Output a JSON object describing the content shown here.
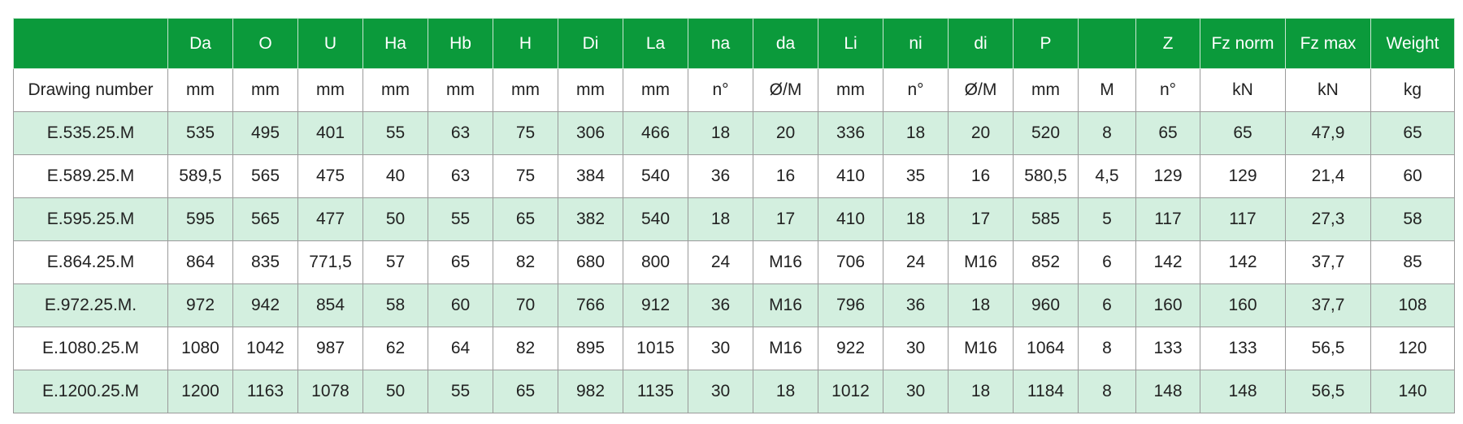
{
  "table": {
    "header": [
      null,
      "Da",
      "O",
      "U",
      "Ha",
      "Hb",
      "H",
      "Di",
      "La",
      "na",
      "da",
      "Li",
      "ni",
      "di",
      "P",
      null,
      "Z",
      "Fz norm",
      "Fz max",
      "Weight"
    ],
    "units": [
      "Drawing number",
      "mm",
      "mm",
      "mm",
      "mm",
      "mm",
      "mm",
      "mm",
      "mm",
      "n°",
      "Ø/M",
      "mm",
      "n°",
      "Ø/M",
      "mm",
      "M",
      "n°",
      "kN",
      "kN",
      "kg"
    ],
    "rows": [
      [
        "E.535.25.M",
        "535",
        "495",
        "401",
        "55",
        "63",
        "75",
        "306",
        "466",
        "18",
        "20",
        "336",
        "18",
        "20",
        "520",
        "8",
        "65",
        "65",
        "47,9",
        "65"
      ],
      [
        "E.589.25.M",
        "589,5",
        "565",
        "475",
        "40",
        "63",
        "75",
        "384",
        "540",
        "36",
        "16",
        "410",
        "35",
        "16",
        "580,5",
        "4,5",
        "129",
        "129",
        "21,4",
        "60"
      ],
      [
        "E.595.25.M",
        "595",
        "565",
        "477",
        "50",
        "55",
        "65",
        "382",
        "540",
        "18",
        "17",
        "410",
        "18",
        "17",
        "585",
        "5",
        "117",
        "117",
        "27,3",
        "58"
      ],
      [
        "E.864.25.M",
        "864",
        "835",
        "771,5",
        "57",
        "65",
        "82",
        "680",
        "800",
        "24",
        "M16",
        "706",
        "24",
        "M16",
        "852",
        "6",
        "142",
        "142",
        "37,7",
        "85"
      ],
      [
        "E.972.25.M.",
        "972",
        "942",
        "854",
        "58",
        "60",
        "70",
        "766",
        "912",
        "36",
        "M16",
        "796",
        "36",
        "18",
        "960",
        "6",
        "160",
        "160",
        "37,7",
        "108"
      ],
      [
        "E.1080.25.M",
        "1080",
        "1042",
        "987",
        "62",
        "64",
        "82",
        "895",
        "1015",
        "30",
        "M16",
        "922",
        "30",
        "M16",
        "1064",
        "8",
        "133",
        "133",
        "56,5",
        "120"
      ],
      [
        "E.1200.25.M",
        "1200",
        "1163",
        "1078",
        "50",
        "55",
        "65",
        "982",
        "1135",
        "30",
        "18",
        "1012",
        "30",
        "18",
        "1184",
        "8",
        "148",
        "148",
        "56,5",
        "140"
      ]
    ]
  }
}
